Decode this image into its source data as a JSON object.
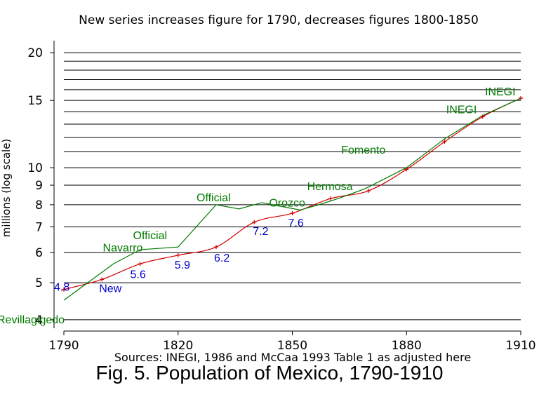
{
  "chart_data": {
    "type": "line",
    "title": "New series increases figure for 1790, decreases figures 1800-1850",
    "ylabel": "millions (log scale)",
    "xlabel": "",
    "sources": "Sources:  INEGI, 1986 and McCaa 1993 Table 1 as adjusted here",
    "caption": "Fig. 5. Population of Mexico, 1790-1910",
    "y_scale": "log",
    "xlim": [
      1790,
      1910
    ],
    "ylim": [
      3.8,
      21.5
    ],
    "x_ticks": [
      1790,
      1820,
      1850,
      1880,
      1910
    ],
    "y_ticks": [
      4,
      5,
      6,
      7,
      8,
      9,
      10,
      15,
      20
    ],
    "grid_y": [
      4,
      5,
      6,
      7,
      8,
      9,
      10,
      11,
      12,
      13,
      14,
      15,
      16,
      17,
      18,
      19,
      20
    ],
    "series": [
      {
        "color": "#d40000",
        "marker": "plus",
        "x": [
          1790,
          1800,
          1810,
          1820,
          1830,
          1840,
          1850,
          1860,
          1870,
          1880,
          1890,
          1900,
          1910
        ],
        "values": [
          4.8,
          5.1,
          5.6,
          5.9,
          6.2,
          7.2,
          7.6,
          8.3,
          8.7,
          9.9,
          11.7,
          13.6,
          15.2
        ]
      },
      {
        "color": "#007a00",
        "marker": "none",
        "x": [
          1790,
          1803,
          1810,
          1820,
          1830,
          1836,
          1842,
          1852,
          1857,
          1862,
          1869,
          1880,
          1890,
          1900,
          1910
        ],
        "values": [
          4.5,
          5.6,
          6.1,
          6.2,
          8.0,
          7.8,
          8.1,
          7.75,
          8.0,
          8.3,
          8.8,
          10.0,
          11.9,
          13.7,
          15.2
        ]
      }
    ],
    "annotations": [
      {
        "text": "4.8",
        "x": 1790,
        "y": 4.8,
        "color": "#0000cc"
      },
      {
        "text": "New",
        "x": 1800,
        "y": 5.1,
        "color": "#0000cc"
      },
      {
        "text": "5.6",
        "x": 1810,
        "y": 5.6,
        "color": "#0000cc"
      },
      {
        "text": "5.9",
        "x": 1820,
        "y": 5.9,
        "color": "#0000cc"
      },
      {
        "text": "6.2",
        "x": 1830,
        "y": 6.2,
        "color": "#0000cc"
      },
      {
        "text": "7.2",
        "x": 1840,
        "y": 7.2,
        "color": "#0000cc"
      },
      {
        "text": "7.6",
        "x": 1850,
        "y": 7.6,
        "color": "#0000cc"
      },
      {
        "text": "Revillagigedo",
        "x": 1790,
        "y": 4.5,
        "color": "#007a00"
      },
      {
        "text": "Navarro",
        "x": 1803,
        "y": 5.6,
        "color": "#007a00"
      },
      {
        "text": "Official",
        "x": 1810,
        "y": 6.1,
        "color": "#007a00"
      },
      {
        "text": "Official",
        "x": 1830,
        "y": 8.0,
        "color": "#007a00"
      },
      {
        "text": "Orozco",
        "x": 1852,
        "y": 7.75,
        "color": "#007a00"
      },
      {
        "text": "Hermosa",
        "x": 1862,
        "y": 8.3,
        "color": "#007a00"
      },
      {
        "text": "Fomento",
        "x": 1880,
        "y": 10.0,
        "color": "#007a00"
      },
      {
        "text": "INEGI",
        "x": 1900,
        "y": 13.7,
        "color": "#007a00"
      },
      {
        "text": "INEGI",
        "x": 1910,
        "y": 15.2,
        "color": "#007a00"
      }
    ]
  }
}
